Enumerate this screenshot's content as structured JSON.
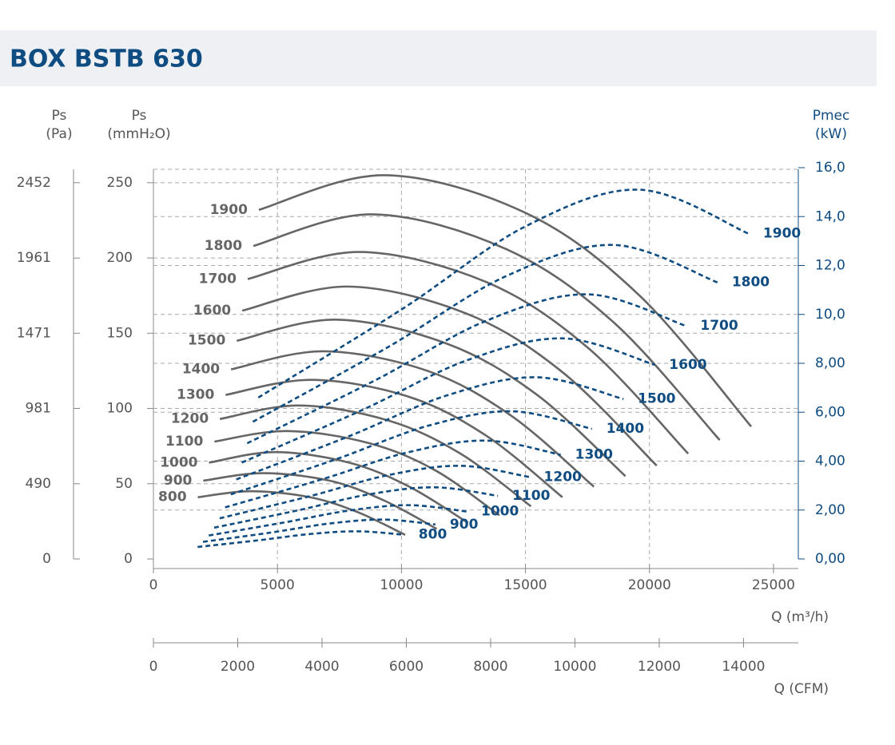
{
  "chart_data": {
    "type": "line",
    "title": "BOX BSTB 630",
    "y_pa_label": "Ps",
    "y_pa_unit": "(Pa)",
    "ylabel": "Ps",
    "yunit": "(mmH₂O)",
    "y2label": "Pmec",
    "y2unit": "(kW)",
    "xlabel": "Q (m³/h)",
    "x2label": "Q (CFM)",
    "xlim": [
      0,
      26000
    ],
    "xticks": [
      0,
      5000,
      10000,
      15000,
      20000,
      25000
    ],
    "x2lim": [
      0,
      15300
    ],
    "x2ticks": [
      0,
      2000,
      4000,
      6000,
      8000,
      10000,
      12000,
      14000
    ],
    "ylim": [
      0,
      260
    ],
    "yticks": [
      0,
      50,
      100,
      150,
      200,
      250
    ],
    "y_pa_lim": [
      0,
      2550
    ],
    "y_pa_ticks": [
      0,
      490,
      981,
      1471,
      1961,
      2452
    ],
    "y2lim": [
      0,
      16
    ],
    "y2ticks": [
      {
        "value": 0,
        "label": "0,00"
      },
      {
        "value": 2,
        "label": "2,00"
      },
      {
        "value": 4,
        "label": "4,00"
      },
      {
        "value": 6,
        "label": "6,00"
      },
      {
        "value": 8,
        "label": "8,00"
      },
      {
        "value": 10,
        "label": "10,0"
      },
      {
        "value": 12,
        "label": "12,0"
      },
      {
        "value": 14,
        "label": "14,0"
      },
      {
        "value": 16,
        "label": "16,0"
      }
    ],
    "grid": true,
    "series": [
      {
        "name": "1900",
        "axis": "y",
        "style": "solid",
        "color": "#666666",
        "x": [
          4250,
          9300,
          15000,
          19600,
          24100
        ],
        "values": [
          232,
          255,
          230,
          175,
          88
        ]
      },
      {
        "name": "1800",
        "axis": "y",
        "style": "solid",
        "color": "#666666",
        "x": [
          4030,
          8810,
          14210,
          18570,
          22830
        ],
        "values": [
          208,
          229,
          206,
          157,
          79
        ]
      },
      {
        "name": "1700",
        "axis": "y",
        "style": "solid",
        "color": "#666666",
        "x": [
          3800,
          8320,
          13420,
          17540,
          21560
        ],
        "values": [
          186,
          204,
          184,
          140,
          70
        ]
      },
      {
        "name": "1600",
        "axis": "y",
        "style": "solid",
        "color": "#666666",
        "x": [
          3580,
          7830,
          12630,
          16500,
          20290
        ],
        "values": [
          165,
          181,
          163,
          124,
          62
        ]
      },
      {
        "name": "1500",
        "axis": "y",
        "style": "solid",
        "color": "#666666",
        "x": [
          3360,
          7340,
          11840,
          15470,
          19030
        ],
        "values": [
          145,
          159,
          143,
          109,
          55
        ]
      },
      {
        "name": "1400",
        "axis": "y",
        "style": "solid",
        "color": "#666666",
        "x": [
          3130,
          6850,
          11050,
          14440,
          17760
        ],
        "values": [
          126,
          138,
          125,
          95,
          48
        ]
      },
      {
        "name": "1300",
        "axis": "y",
        "style": "solid",
        "color": "#666666",
        "x": [
          2910,
          6360,
          10260,
          13410,
          16490
        ],
        "values": [
          109,
          119,
          108,
          82,
          41
        ]
      },
      {
        "name": "1200",
        "axis": "y",
        "style": "solid",
        "color": "#666666",
        "x": [
          2680,
          5870,
          9470,
          12380,
          15220
        ],
        "values": [
          93,
          102,
          92,
          70,
          35
        ]
      },
      {
        "name": "1100",
        "axis": "y",
        "style": "solid",
        "color": "#666666",
        "x": [
          2460,
          5380,
          8680,
          11350,
          13950
        ],
        "values": [
          78,
          85,
          77,
          59,
          29
        ]
      },
      {
        "name": "1000",
        "axis": "y",
        "style": "solid",
        "color": "#666666",
        "x": [
          2240,
          4890,
          7890,
          10320,
          12680
        ],
        "values": [
          64,
          71,
          64,
          48,
          24
        ]
      },
      {
        "name": "900",
        "axis": "y",
        "style": "solid",
        "color": "#666666",
        "x": [
          2010,
          4410,
          7110,
          9280,
          11420
        ],
        "values": [
          52,
          57,
          52,
          39,
          20
        ]
      },
      {
        "name": "800",
        "axis": "y",
        "style": "solid",
        "color": "#666666",
        "x": [
          1790,
          3920,
          6320,
          8250,
          10150
        ],
        "values": [
          41,
          45,
          41,
          31,
          16
        ]
      },
      {
        "name": "1900",
        "axis": "y2",
        "style": "dashed",
        "color": "#0f4c81",
        "x": [
          4230,
          10000,
          15000,
          19600,
          24000
        ],
        "values": [
          6.6,
          10.2,
          13.6,
          15.1,
          13.3
        ]
      },
      {
        "name": "1800",
        "axis": "y2",
        "style": "dashed",
        "color": "#0f4c81",
        "x": [
          4010,
          9470,
          14210,
          18570,
          22740
        ],
        "values": [
          5.61,
          8.67,
          11.56,
          12.84,
          11.31
        ]
      },
      {
        "name": "1700",
        "axis": "y2",
        "style": "dashed",
        "color": "#0f4c81",
        "x": [
          3780,
          8950,
          13420,
          17540,
          21470
        ],
        "values": [
          4.73,
          7.31,
          9.74,
          10.82,
          9.53
        ]
      },
      {
        "name": "1600",
        "axis": "y2",
        "style": "dashed",
        "color": "#0f4c81",
        "x": [
          3560,
          8420,
          12630,
          16510,
          20210
        ],
        "values": [
          3.94,
          6.09,
          8.12,
          9.02,
          7.94
        ]
      },
      {
        "name": "1500",
        "axis": "y2",
        "style": "dashed",
        "color": "#0f4c81",
        "x": [
          3340,
          7890,
          11840,
          15470,
          18950
        ],
        "values": [
          3.25,
          5.02,
          6.69,
          7.43,
          6.54
        ]
      },
      {
        "name": "1400",
        "axis": "y2",
        "style": "dashed",
        "color": "#0f4c81",
        "x": [
          3120,
          7370,
          11050,
          14440,
          17680
        ],
        "values": [
          2.64,
          4.08,
          5.44,
          6.04,
          5.32
        ]
      },
      {
        "name": "1300",
        "axis": "y2",
        "style": "dashed",
        "color": "#0f4c81",
        "x": [
          2890,
          6840,
          10260,
          13410,
          16420
        ],
        "values": [
          2.11,
          3.27,
          4.36,
          4.84,
          4.26
        ]
      },
      {
        "name": "1200",
        "axis": "y2",
        "style": "dashed",
        "color": "#0f4c81",
        "x": [
          2670,
          6320,
          9470,
          12380,
          15160
        ],
        "values": [
          1.66,
          2.57,
          3.43,
          3.81,
          3.35
        ]
      },
      {
        "name": "1100",
        "axis": "y2",
        "style": "dashed",
        "color": "#0f4c81",
        "x": [
          2450,
          5790,
          8680,
          11350,
          13890
        ],
        "values": [
          1.28,
          1.98,
          2.64,
          2.93,
          2.58
        ]
      },
      {
        "name": "1000",
        "axis": "y2",
        "style": "dashed",
        "color": "#0f4c81",
        "x": [
          2230,
          5260,
          7890,
          10320,
          12630
        ],
        "values": [
          0.96,
          1.49,
          1.98,
          2.2,
          1.94
        ]
      },
      {
        "name": "900",
        "axis": "y2",
        "style": "dashed",
        "color": "#0f4c81",
        "x": [
          2000,
          4740,
          7110,
          9280,
          11370
        ],
        "values": [
          0.7,
          1.08,
          1.45,
          1.61,
          1.41
        ]
      },
      {
        "name": "800",
        "axis": "y2",
        "style": "dashed",
        "color": "#0f4c81",
        "x": [
          1780,
          4210,
          6320,
          8250,
          10110
        ],
        "values": [
          0.49,
          0.76,
          1.02,
          1.13,
          0.99
        ]
      }
    ]
  }
}
